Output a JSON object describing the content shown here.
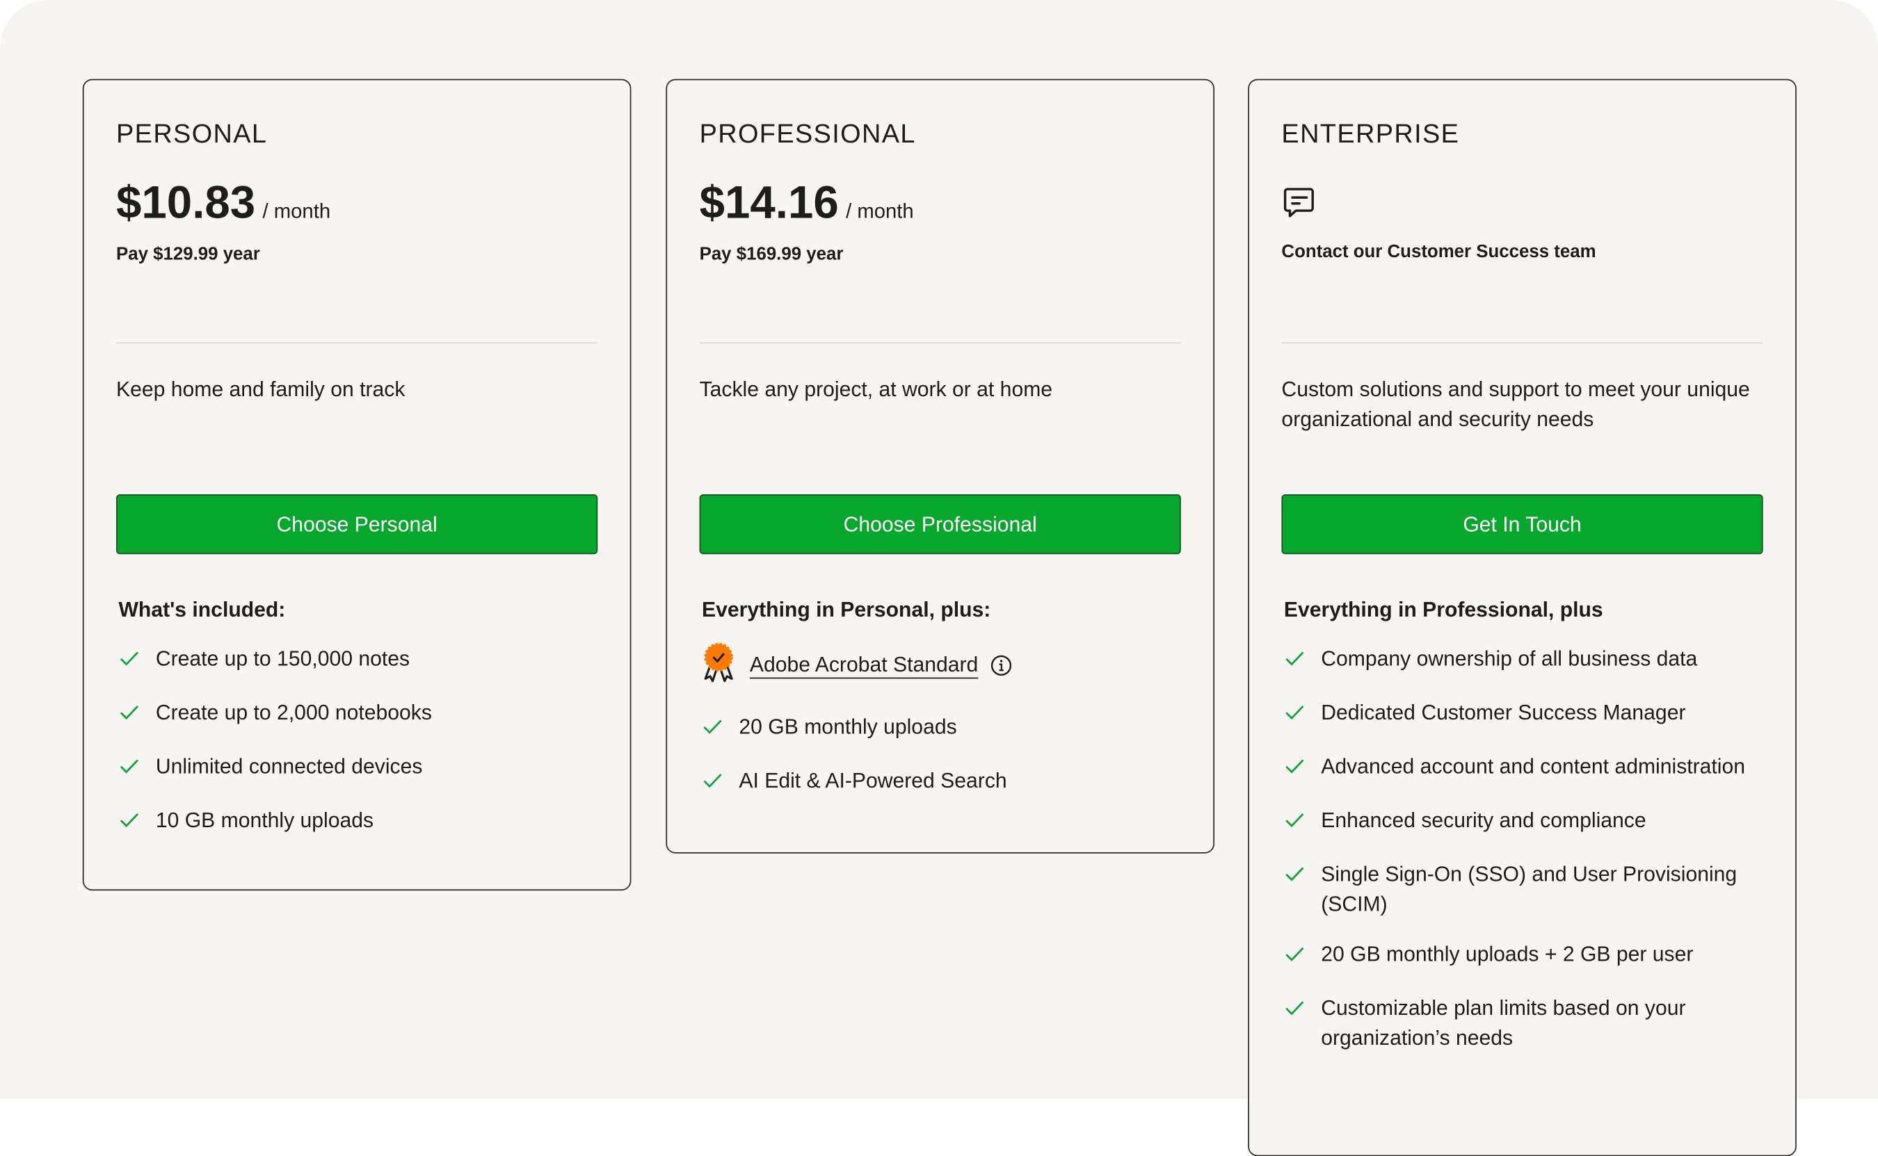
{
  "plans": [
    {
      "name": "PERSONAL",
      "price": "$10.83",
      "period": "/ month",
      "billing": "Pay $129.99 year",
      "description": "Keep home and family on track",
      "button": "Choose Personal",
      "features_heading": "What's included:",
      "features": [
        "Create up to 150,000 notes",
        "Create up to 2,000 notebooks",
        "Unlimited connected devices",
        "10 GB monthly uploads"
      ]
    },
    {
      "name": "PROFESSIONAL",
      "price": "$14.16",
      "period": "/ month",
      "billing": "Pay $169.99 year",
      "description": "Tackle any project, at work or at home",
      "button": "Choose Professional",
      "features_heading": "Everything in Personal, plus:",
      "highlight": {
        "label": "Adobe Acrobat Standard",
        "icon": "award-badge-icon",
        "badge_color": "#ff7a00"
      },
      "features": [
        "20 GB monthly uploads",
        "AI Edit & AI-Powered Search"
      ]
    },
    {
      "name": "ENTERPRISE",
      "icon": "chat-bubble-icon",
      "contact": "Contact our Customer Success team",
      "description": "Custom solutions and support to meet your unique organizational and security needs",
      "button": "Get In Touch",
      "features_heading": "Everything in Professional, plus",
      "features": [
        "Company ownership of all business data",
        "Dedicated Customer Success Manager",
        "Advanced account and content administration",
        "Enhanced security and compliance",
        "Single Sign-On (SSO) and User Provisioning (SCIM)",
        "20 GB monthly uploads + 2 GB per user",
        "Customizable plan limits based on your organization’s needs"
      ]
    }
  ],
  "colors": {
    "button": "#05a82d",
    "check": "#10a33a",
    "background": "#f6f5f1"
  }
}
